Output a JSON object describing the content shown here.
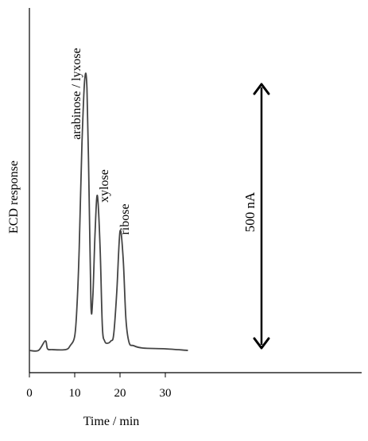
{
  "chart_data": {
    "type": "line",
    "title": "",
    "xlabel": "Time / min",
    "ylabel": "ECD response",
    "xlim": [
      0,
      75
    ],
    "xticks": [
      0,
      10,
      20,
      30
    ],
    "yaxis_numeric_labels": false,
    "grid": false,
    "series": [
      {
        "x": [
          0,
          2,
          3.5,
          4,
          5,
          8,
          9,
          10,
          10.5,
          11,
          11.6,
          12.2,
          12.7,
          13.2,
          13.6,
          14.0,
          14.5,
          15.0,
          15.6,
          16.1,
          16.6,
          17.2,
          18.0,
          18.6,
          19.3,
          20.0,
          20.7,
          21.3,
          22.0,
          23,
          25,
          30,
          35
        ],
        "y": [
          0,
          0,
          12,
          2,
          1,
          1,
          6,
          18,
          55,
          130,
          260,
          340,
          330,
          190,
          55,
          68,
          150,
          195,
          130,
          30,
          12,
          9,
          12,
          20,
          75,
          150,
          115,
          40,
          10,
          6,
          3,
          2,
          0
        ]
      }
    ],
    "peaks": [
      {
        "label": "arabinose / lyxose",
        "x": 12.2
      },
      {
        "label": "xylose",
        "x": 15.0
      },
      {
        "label": "ribose",
        "x": 20.0
      }
    ],
    "scale_bar": {
      "label": "500 nA",
      "value_nA": 500
    }
  }
}
